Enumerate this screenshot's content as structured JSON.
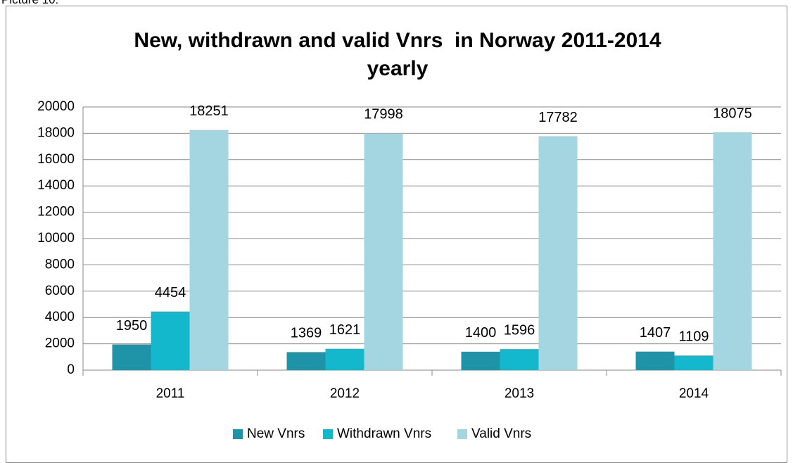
{
  "caption": "Picture 10:",
  "chart_data": {
    "type": "bar",
    "title": "New, withdrawn and valid Vnrs  in Norway 2011-2014 yearly",
    "categories": [
      "2011",
      "2012",
      "2013",
      "2014"
    ],
    "series": [
      {
        "name": "New Vnrs",
        "color": "#1f93a8",
        "values": [
          1950,
          1369,
          1400,
          1407
        ]
      },
      {
        "name": "Withdrawn Vnrs",
        "color": "#14b8cc",
        "values": [
          4454,
          1621,
          1596,
          1109
        ]
      },
      {
        "name": "Valid Vnrs",
        "color": "#a3d6e1",
        "values": [
          18251,
          17998,
          17782,
          18075
        ]
      }
    ],
    "ylim": [
      0,
      20000
    ],
    "yticks": [
      0,
      2000,
      4000,
      6000,
      8000,
      10000,
      12000,
      14000,
      16000,
      18000,
      20000
    ],
    "grid": true,
    "legend": "bottom"
  }
}
